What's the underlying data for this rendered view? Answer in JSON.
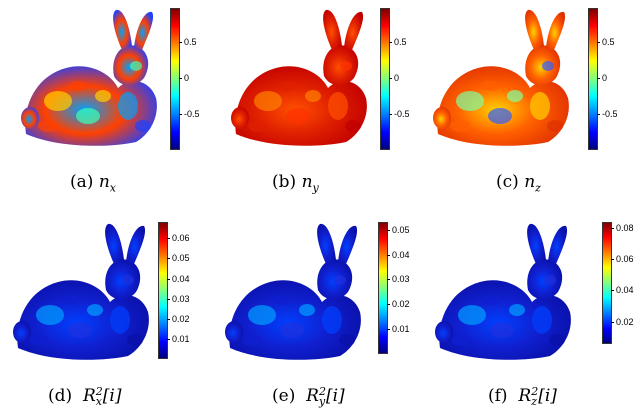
{
  "figures": [
    {
      "id": "a",
      "label": "(a)",
      "var": "n",
      "sub": "x",
      "sup": "",
      "suffix": "",
      "colorbar_ticks": [
        "0.5",
        "0",
        "-0.5"
      ],
      "dominant": "mixed"
    },
    {
      "id": "b",
      "label": "(b)",
      "var": "n",
      "sub": "y",
      "sup": "",
      "suffix": "",
      "colorbar_ticks": [
        "0.5",
        "0",
        "-0.5"
      ],
      "dominant": "red"
    },
    {
      "id": "c",
      "label": "(c)",
      "var": "n",
      "sub": "z",
      "sup": "",
      "suffix": "",
      "colorbar_ticks": [
        "0.5",
        "0",
        "-0.5"
      ],
      "dominant": "warm"
    },
    {
      "id": "d",
      "label": "(d)",
      "var": "R",
      "sub": "x",
      "sup": "2",
      "suffix": "[i]",
      "colorbar_ticks": [
        "0.06",
        "0.05",
        "0.04",
        "0.03",
        "0.02",
        "0.01"
      ],
      "dominant": "blue"
    },
    {
      "id": "e",
      "label": "(e)",
      "var": "R",
      "sub": "y",
      "sup": "2",
      "suffix": "[i]",
      "colorbar_ticks": [
        "0.05",
        "0.04",
        "0.03",
        "0.02",
        "0.01"
      ],
      "dominant": "blue"
    },
    {
      "id": "f",
      "label": "(f)",
      "var": "R",
      "sub": "z",
      "sup": "2",
      "suffix": "[i]",
      "colorbar_ticks": [
        "0.08",
        "0.06",
        "0.04",
        "0.02"
      ],
      "dominant": "blue"
    }
  ],
  "colormap": "jet"
}
